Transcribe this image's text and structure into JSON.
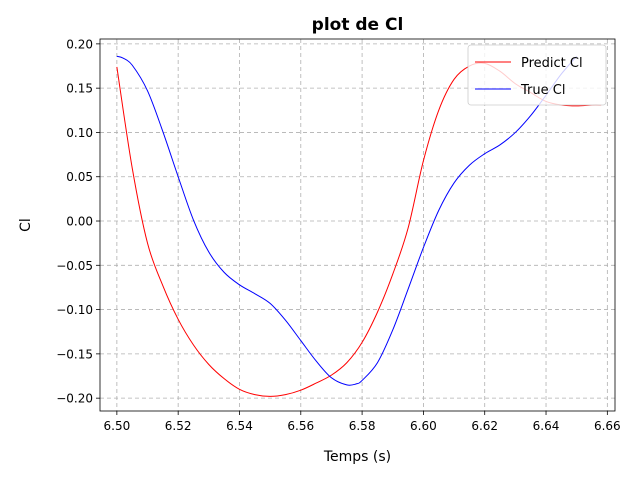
{
  "chart_data": {
    "type": "line",
    "title": "plot de Cl",
    "xlabel": "Temps (s)",
    "ylabel": "Cl",
    "xlim": [
      6.4945,
      6.6625
    ],
    "ylim": [
      -0.2145,
      0.2055
    ],
    "xticks": [
      6.5,
      6.52,
      6.54,
      6.56,
      6.58,
      6.6,
      6.62,
      6.64,
      6.66
    ],
    "xtick_labels": [
      "6.50",
      "6.52",
      "6.54",
      "6.56",
      "6.58",
      "6.60",
      "6.62",
      "6.64",
      "6.66"
    ],
    "yticks": [
      -0.2,
      -0.15,
      -0.1,
      -0.05,
      0.0,
      0.05,
      0.1,
      0.15,
      0.2
    ],
    "ytick_labels": [
      "−0.20",
      "−0.15",
      "−0.10",
      "−0.05",
      "0.00",
      "0.05",
      "0.10",
      "0.15",
      "0.20"
    ],
    "grid": true,
    "legend_position": "top-right",
    "series": [
      {
        "name": "Predict Cl",
        "color": "#ff0000",
        "x": [
          6.5,
          6.505,
          6.51,
          6.515,
          6.52,
          6.525,
          6.53,
          6.535,
          6.54,
          6.545,
          6.55,
          6.555,
          6.56,
          6.565,
          6.57,
          6.575,
          6.58,
          6.585,
          6.59,
          6.595,
          6.6,
          6.605,
          6.61,
          6.615,
          6.62,
          6.625,
          6.63,
          6.635,
          6.64,
          6.645,
          6.65,
          6.655,
          6.658
        ],
        "y": [
          0.174,
          0.06,
          -0.025,
          -0.073,
          -0.111,
          -0.14,
          -0.162,
          -0.178,
          -0.19,
          -0.196,
          -0.198,
          -0.196,
          -0.191,
          -0.183,
          -0.174,
          -0.16,
          -0.137,
          -0.103,
          -0.06,
          -0.008,
          0.068,
          0.125,
          0.16,
          0.175,
          0.178,
          0.169,
          0.155,
          0.145,
          0.135,
          0.131,
          0.13,
          0.131,
          0.131
        ]
      },
      {
        "name": "True Cl",
        "color": "#0000ff",
        "x": [
          6.5,
          6.502,
          6.505,
          6.51,
          6.515,
          6.52,
          6.525,
          6.53,
          6.535,
          6.54,
          6.545,
          6.55,
          6.555,
          6.56,
          6.565,
          6.57,
          6.575,
          6.578,
          6.58,
          6.585,
          6.59,
          6.595,
          6.6,
          6.605,
          6.61,
          6.615,
          6.62,
          6.625,
          6.63,
          6.635,
          6.64,
          6.645,
          6.65
        ],
        "y": [
          0.186,
          0.184,
          0.176,
          0.147,
          0.101,
          0.05,
          0.001,
          -0.035,
          -0.058,
          -0.072,
          -0.082,
          -0.093,
          -0.112,
          -0.135,
          -0.158,
          -0.177,
          -0.185,
          -0.184,
          -0.18,
          -0.16,
          -0.123,
          -0.077,
          -0.03,
          0.012,
          0.043,
          0.063,
          0.076,
          0.086,
          0.1,
          0.119,
          0.142,
          0.166,
          0.186
        ]
      }
    ]
  }
}
